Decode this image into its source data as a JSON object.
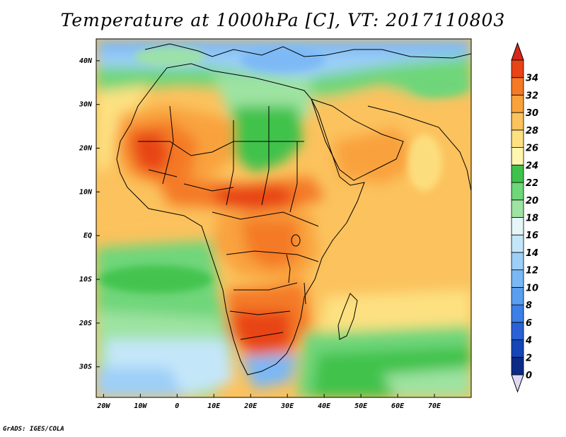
{
  "title": "Temperature at 1000hPa [C], VT: 2017110803",
  "credit": "GrADS: IGES/COLA",
  "map": {
    "lon_range": [
      -22,
      80
    ],
    "lat_range": [
      -37,
      45
    ],
    "lon_ticks": [
      {
        "value": -20,
        "label": "20W"
      },
      {
        "value": -10,
        "label": "10W"
      },
      {
        "value": 0,
        "label": "0"
      },
      {
        "value": 10,
        "label": "10E"
      },
      {
        "value": 20,
        "label": "20E"
      },
      {
        "value": 30,
        "label": "30E"
      },
      {
        "value": 40,
        "label": "40E"
      },
      {
        "value": 50,
        "label": "50E"
      },
      {
        "value": 60,
        "label": "60E"
      },
      {
        "value": 70,
        "label": "70E"
      }
    ],
    "lat_ticks": [
      {
        "value": 40,
        "label": "40N"
      },
      {
        "value": 30,
        "label": "30N"
      },
      {
        "value": 20,
        "label": "20N"
      },
      {
        "value": 10,
        "label": "10N"
      },
      {
        "value": 0,
        "label": "EQ"
      },
      {
        "value": -10,
        "label": "10S"
      },
      {
        "value": -20,
        "label": "20S"
      },
      {
        "value": -30,
        "label": "30S"
      }
    ]
  },
  "colorbar": {
    "labels": [
      "0",
      "2",
      "4",
      "6",
      "8",
      "10",
      "12",
      "14",
      "16",
      "18",
      "20",
      "22",
      "24",
      "26",
      "28",
      "30",
      "32",
      "34"
    ],
    "colors": [
      "#0b2b86",
      "#1446b8",
      "#2a62d6",
      "#3c7fe6",
      "#5a9ef0",
      "#7ab8f5",
      "#9dcff8",
      "#c4e6f9",
      "#e4f6f7",
      "#9ee3a2",
      "#6fd67a",
      "#3fc24c",
      "#fff7b0",
      "#fde181",
      "#fbc25d",
      "#f9a23c",
      "#f47a25",
      "#e84416"
    ],
    "top_color": "#d8261a",
    "bottom_color": "#e0d9f5"
  }
}
